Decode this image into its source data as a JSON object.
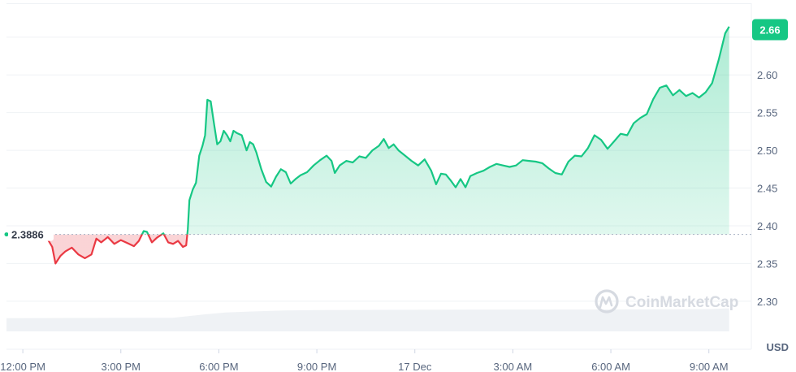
{
  "chart_data": {
    "type": "area",
    "currency_label": "USD",
    "watermark": "CoinMarketCap",
    "reference_value": 2.3886,
    "reference_label": "2.3886",
    "current_value": 2.66,
    "current_label": "2.66",
    "ylim": [
      2.26,
      2.695
    ],
    "y_ticks": [
      {
        "value": 2.3,
        "label": "2.30"
      },
      {
        "value": 2.35,
        "label": "2.35"
      },
      {
        "value": 2.4,
        "label": "2.40"
      },
      {
        "value": 2.45,
        "label": "2.45"
      },
      {
        "value": 2.5,
        "label": "2.50"
      },
      {
        "value": 2.55,
        "label": "2.55"
      },
      {
        "value": 2.6,
        "label": "2.60"
      },
      {
        "value": 2.65,
        "label": "2.65"
      }
    ],
    "xlim": [
      11.5,
      34.3
    ],
    "x_ticks": [
      {
        "t": 12,
        "label": "12:00 PM"
      },
      {
        "t": 15,
        "label": "3:00 PM"
      },
      {
        "t": 18,
        "label": "6:00 PM"
      },
      {
        "t": 21,
        "label": "9:00 PM"
      },
      {
        "t": 24,
        "label": "17 Dec"
      },
      {
        "t": 27,
        "label": "3:00 AM"
      },
      {
        "t": 30,
        "label": "6:00 AM"
      },
      {
        "t": 33,
        "label": "9:00 AM"
      }
    ],
    "series": [
      {
        "values": [
          [
            12.55,
            2.3886
          ],
          [
            12.75,
            2.383
          ],
          [
            12.9,
            2.372
          ],
          [
            13.0,
            2.35
          ],
          [
            13.15,
            2.36
          ],
          [
            13.3,
            2.366
          ],
          [
            13.5,
            2.371
          ],
          [
            13.7,
            2.362
          ],
          [
            13.9,
            2.357
          ],
          [
            14.1,
            2.362
          ],
          [
            14.25,
            2.383
          ],
          [
            14.4,
            2.378
          ],
          [
            14.6,
            2.385
          ],
          [
            14.8,
            2.376
          ],
          [
            15.0,
            2.381
          ],
          [
            15.2,
            2.377
          ],
          [
            15.4,
            2.373
          ],
          [
            15.55,
            2.38
          ],
          [
            15.7,
            2.393
          ],
          [
            15.8,
            2.392
          ],
          [
            15.95,
            2.378
          ],
          [
            16.1,
            2.384
          ],
          [
            16.3,
            2.39
          ],
          [
            16.45,
            2.378
          ],
          [
            16.6,
            2.376
          ],
          [
            16.75,
            2.38
          ],
          [
            16.9,
            2.372
          ],
          [
            17.0,
            2.374
          ],
          [
            17.05,
            2.395
          ],
          [
            17.1,
            2.434
          ],
          [
            17.2,
            2.448
          ],
          [
            17.3,
            2.457
          ],
          [
            17.4,
            2.493
          ],
          [
            17.5,
            2.506
          ],
          [
            17.58,
            2.52
          ],
          [
            17.65,
            2.567
          ],
          [
            17.75,
            2.565
          ],
          [
            17.85,
            2.536
          ],
          [
            17.95,
            2.508
          ],
          [
            18.05,
            2.512
          ],
          [
            18.15,
            2.526
          ],
          [
            18.25,
            2.52
          ],
          [
            18.35,
            2.512
          ],
          [
            18.45,
            2.526
          ],
          [
            18.55,
            2.523
          ],
          [
            18.7,
            2.52
          ],
          [
            18.85,
            2.5
          ],
          [
            18.95,
            2.511
          ],
          [
            19.05,
            2.508
          ],
          [
            19.15,
            2.497
          ],
          [
            19.3,
            2.475
          ],
          [
            19.45,
            2.458
          ],
          [
            19.6,
            2.452
          ],
          [
            19.75,
            2.465
          ],
          [
            19.9,
            2.475
          ],
          [
            20.05,
            2.471
          ],
          [
            20.2,
            2.456
          ],
          [
            20.35,
            2.462
          ],
          [
            20.5,
            2.467
          ],
          [
            20.7,
            2.471
          ],
          [
            20.9,
            2.48
          ],
          [
            21.1,
            2.487
          ],
          [
            21.3,
            2.493
          ],
          [
            21.45,
            2.486
          ],
          [
            21.55,
            2.47
          ],
          [
            21.7,
            2.48
          ],
          [
            21.9,
            2.486
          ],
          [
            22.1,
            2.484
          ],
          [
            22.3,
            2.492
          ],
          [
            22.5,
            2.49
          ],
          [
            22.7,
            2.5
          ],
          [
            22.9,
            2.506
          ],
          [
            23.05,
            2.515
          ],
          [
            23.2,
            2.503
          ],
          [
            23.35,
            2.508
          ],
          [
            23.5,
            2.5
          ],
          [
            23.7,
            2.493
          ],
          [
            23.9,
            2.486
          ],
          [
            24.1,
            2.48
          ],
          [
            24.3,
            2.488
          ],
          [
            24.5,
            2.473
          ],
          [
            24.65,
            2.455
          ],
          [
            24.8,
            2.469
          ],
          [
            24.95,
            2.468
          ],
          [
            25.1,
            2.46
          ],
          [
            25.25,
            2.451
          ],
          [
            25.4,
            2.462
          ],
          [
            25.55,
            2.451
          ],
          [
            25.7,
            2.466
          ],
          [
            25.9,
            2.47
          ],
          [
            26.1,
            2.473
          ],
          [
            26.3,
            2.478
          ],
          [
            26.5,
            2.482
          ],
          [
            26.7,
            2.48
          ],
          [
            26.9,
            2.478
          ],
          [
            27.1,
            2.48
          ],
          [
            27.3,
            2.487
          ],
          [
            27.5,
            2.486
          ],
          [
            27.7,
            2.485
          ],
          [
            27.9,
            2.483
          ],
          [
            28.1,
            2.476
          ],
          [
            28.3,
            2.47
          ],
          [
            28.5,
            2.468
          ],
          [
            28.7,
            2.485
          ],
          [
            28.9,
            2.493
          ],
          [
            29.1,
            2.492
          ],
          [
            29.3,
            2.503
          ],
          [
            29.5,
            2.52
          ],
          [
            29.7,
            2.514
          ],
          [
            29.9,
            2.502
          ],
          [
            30.1,
            2.512
          ],
          [
            30.3,
            2.522
          ],
          [
            30.5,
            2.52
          ],
          [
            30.7,
            2.536
          ],
          [
            30.9,
            2.543
          ],
          [
            31.1,
            2.548
          ],
          [
            31.3,
            2.568
          ],
          [
            31.5,
            2.583
          ],
          [
            31.7,
            2.586
          ],
          [
            31.9,
            2.573
          ],
          [
            32.1,
            2.58
          ],
          [
            32.3,
            2.572
          ],
          [
            32.5,
            2.576
          ],
          [
            32.7,
            2.57
          ],
          [
            32.9,
            2.577
          ],
          [
            33.1,
            2.589
          ],
          [
            33.3,
            2.62
          ],
          [
            33.5,
            2.655
          ],
          [
            33.62,
            2.664
          ]
        ]
      }
    ],
    "volume_fraction": [
      [
        11.5,
        0.38
      ],
      [
        15.5,
        0.39
      ],
      [
        16.6,
        0.39
      ],
      [
        17.0,
        0.43
      ],
      [
        17.3,
        0.46
      ],
      [
        17.6,
        0.49
      ],
      [
        18.2,
        0.54
      ],
      [
        19.0,
        0.57
      ],
      [
        20.0,
        0.6
      ],
      [
        21.0,
        0.61
      ],
      [
        22.0,
        0.615
      ],
      [
        25.0,
        0.62
      ],
      [
        28.0,
        0.625
      ],
      [
        31.0,
        0.63
      ],
      [
        33.0,
        0.64
      ],
      [
        33.62,
        0.66
      ]
    ],
    "colors": {
      "up": "#16c784",
      "down": "#ea3943",
      "up_fill": "#16c784",
      "down_fill": "#ea3943",
      "grid": "#eff2f5",
      "axis_text": "#58667e",
      "volume": "#eff2f5"
    }
  }
}
